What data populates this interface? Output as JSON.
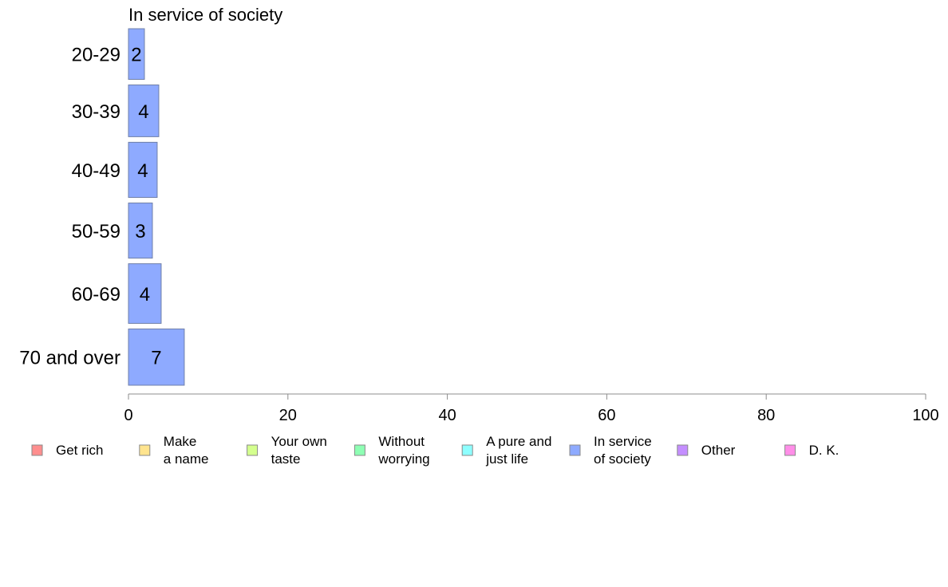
{
  "chart_data": {
    "type": "bar",
    "orientation": "horizontal",
    "title": "In service of society",
    "categories": [
      "20-29",
      "30-39",
      "40-49",
      "50-59",
      "60-69",
      "70 and over"
    ],
    "series": [
      {
        "name": "In service of society",
        "color": "#8eaaff",
        "values": [
          2,
          4,
          4,
          3,
          4,
          7
        ]
      }
    ],
    "data_labels": [
      "2",
      "4",
      "4",
      "3",
      "4",
      "7"
    ],
    "bar_weights": [
      0.9,
      0.92,
      0.98,
      0.98,
      1.06,
      1.0
    ],
    "actual_values": [
      2.0,
      3.8,
      3.6,
      3.0,
      4.1,
      7.0
    ],
    "xlim": [
      0,
      100
    ],
    "xticks": [
      0,
      20,
      40,
      60,
      80,
      100
    ],
    "grid": false,
    "legend": {
      "placement": "bottom",
      "items": [
        {
          "lines": [
            "Get rich"
          ],
          "color": "#ff8e8e"
        },
        {
          "lines": [
            "Make",
            "a name"
          ],
          "color": "#ffe48e"
        },
        {
          "lines": [
            "Your own",
            "taste"
          ],
          "color": "#d4ff8e"
        },
        {
          "lines": [
            "Without",
            "worrying"
          ],
          "color": "#8effb4"
        },
        {
          "lines": [
            "A pure and",
            "just life"
          ],
          "color": "#8effff"
        },
        {
          "lines": [
            "In service",
            "of society"
          ],
          "color": "#8eaaff"
        },
        {
          "lines": [
            "Other"
          ],
          "color": "#c48eff"
        },
        {
          "lines": [
            "D. K."
          ],
          "color": "#ff8ee8"
        }
      ]
    }
  }
}
